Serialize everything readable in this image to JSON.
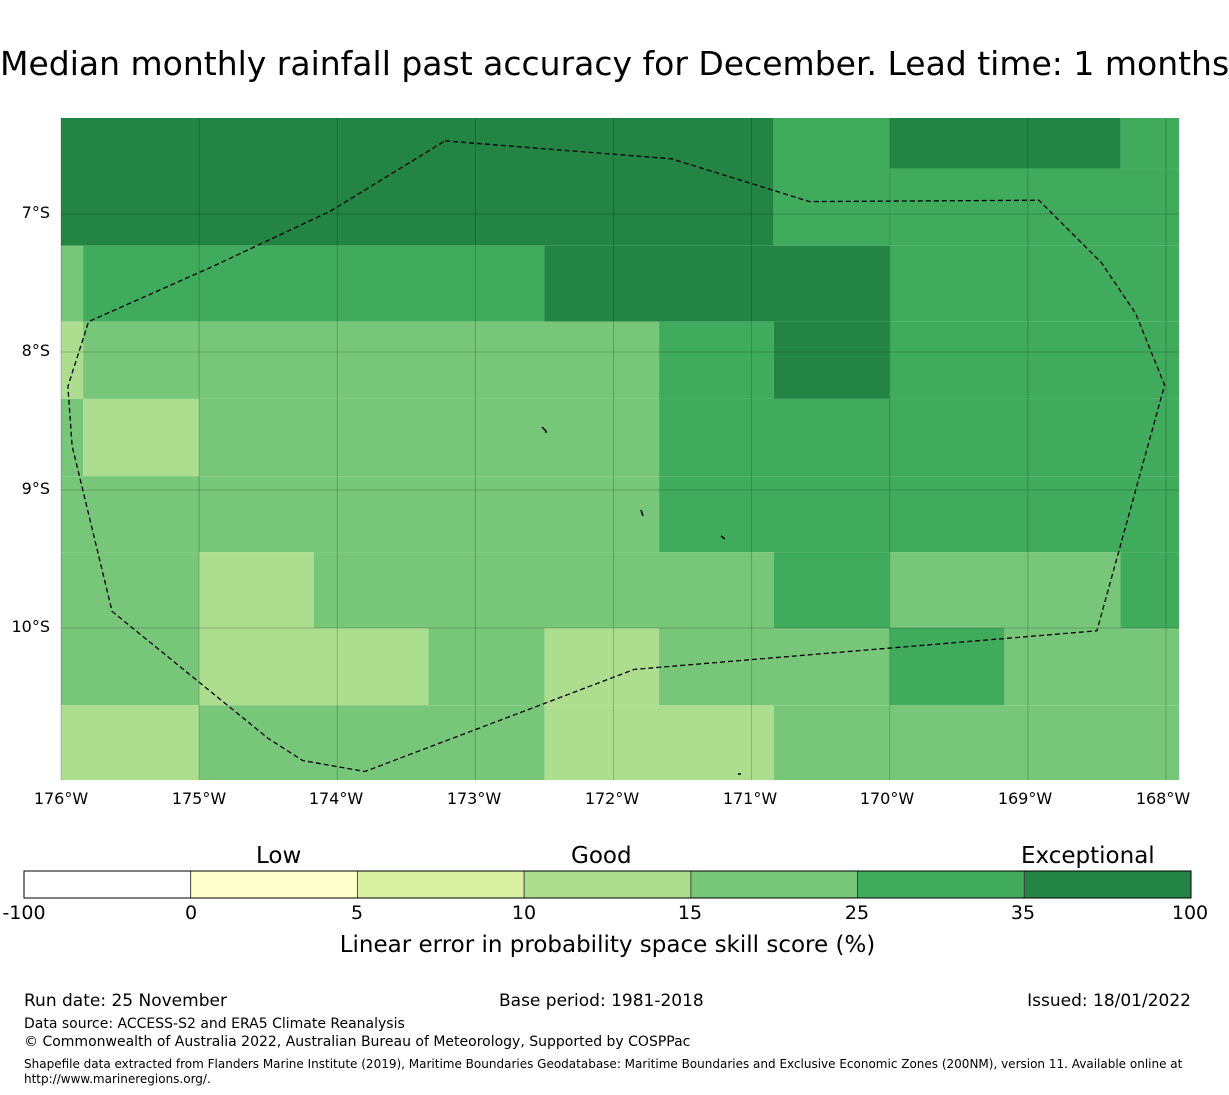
{
  "title": "Median monthly rainfall past accuracy for December. Lead time: 1 months",
  "map": {
    "lat_labels": [
      "7°S",
      "8°S",
      "9°S",
      "10°S"
    ],
    "lon_labels": [
      "176°W",
      "175°W",
      "174°W",
      "173°W",
      "172°W",
      "171°W",
      "170°W",
      "169°W",
      "168°W"
    ],
    "lon_range": [
      -176,
      -167.9
    ],
    "lat_range": [
      -11.15,
      -6.3
    ],
    "grid_cells": [
      {
        "lon": [
          -176,
          -170.84
        ],
        "lat": [
          -7.23,
          -6.3
        ],
        "category": "35-100"
      },
      {
        "lon": [
          -170.84,
          -170
        ],
        "lat": [
          -7.23,
          -6.3
        ],
        "category": "25-35"
      },
      {
        "lon": [
          -170,
          -168.33
        ],
        "lat": [
          -6.67,
          -6.3
        ],
        "category": "35-100"
      },
      {
        "lon": [
          -168.33,
          -167.9
        ],
        "lat": [
          -6.67,
          -6.3
        ],
        "category": "25-35"
      },
      {
        "lon": [
          -170,
          -167.9
        ],
        "lat": [
          -7.23,
          -6.67
        ],
        "category": "25-35"
      },
      {
        "lon": [
          -176,
          -175.84
        ],
        "lat": [
          -7.78,
          -7.23
        ],
        "category": "15-25"
      },
      {
        "lon": [
          -175.84,
          -172.5
        ],
        "lat": [
          -7.78,
          -7.23
        ],
        "category": "25-35"
      },
      {
        "lon": [
          -172.5,
          -170
        ],
        "lat": [
          -7.78,
          -7.23
        ],
        "category": "35-100"
      },
      {
        "lon": [
          -170,
          -167.9
        ],
        "lat": [
          -7.78,
          -7.23
        ],
        "category": "25-35"
      },
      {
        "lon": [
          -176,
          -175.84
        ],
        "lat": [
          -8.34,
          -7.78
        ],
        "category": "10-15"
      },
      {
        "lon": [
          -175.84,
          -171.67
        ],
        "lat": [
          -8.34,
          -7.78
        ],
        "category": "15-25"
      },
      {
        "lon": [
          -171.67,
          -170.84
        ],
        "lat": [
          -8.34,
          -7.78
        ],
        "category": "25-35"
      },
      {
        "lon": [
          -170.84,
          -170
        ],
        "lat": [
          -8.34,
          -7.78
        ],
        "category": "35-100"
      },
      {
        "lon": [
          -170,
          -167.9
        ],
        "lat": [
          -8.34,
          -7.78
        ],
        "category": "25-35"
      },
      {
        "lon": [
          -176,
          -175.84
        ],
        "lat": [
          -8.9,
          -8.34
        ],
        "category": "15-25"
      },
      {
        "lon": [
          -175.84,
          -175
        ],
        "lat": [
          -8.9,
          -8.34
        ],
        "category": "10-15"
      },
      {
        "lon": [
          -175,
          -171.67
        ],
        "lat": [
          -8.9,
          -8.34
        ],
        "category": "15-25"
      },
      {
        "lon": [
          -171.67,
          -167.9
        ],
        "lat": [
          -8.9,
          -8.34
        ],
        "category": "25-35"
      },
      {
        "lon": [
          -176,
          -171.67
        ],
        "lat": [
          -9.45,
          -8.9
        ],
        "category": "15-25"
      },
      {
        "lon": [
          -171.67,
          -167.9
        ],
        "lat": [
          -9.45,
          -8.9
        ],
        "category": "25-35"
      },
      {
        "lon": [
          -176,
          -175
        ],
        "lat": [
          -10.0,
          -9.45
        ],
        "category": "15-25"
      },
      {
        "lon": [
          -175,
          -174.17
        ],
        "lat": [
          -10.0,
          -9.45
        ],
        "category": "10-15"
      },
      {
        "lon": [
          -174.17,
          -170.84
        ],
        "lat": [
          -10.0,
          -9.45
        ],
        "category": "15-25"
      },
      {
        "lon": [
          -170.84,
          -170
        ],
        "lat": [
          -10.0,
          -9.45
        ],
        "category": "25-35"
      },
      {
        "lon": [
          -170,
          -168.33
        ],
        "lat": [
          -10.0,
          -9.45
        ],
        "category": "15-25"
      },
      {
        "lon": [
          -168.33,
          -167.9
        ],
        "lat": [
          -10.0,
          -9.45
        ],
        "category": "25-35"
      },
      {
        "lon": [
          -176,
          -175
        ],
        "lat": [
          -10.56,
          -10.0
        ],
        "category": "15-25"
      },
      {
        "lon": [
          -175,
          -173.34
        ],
        "lat": [
          -10.56,
          -10.0
        ],
        "category": "10-15"
      },
      {
        "lon": [
          -173.34,
          -172.5
        ],
        "lat": [
          -10.56,
          -10.0
        ],
        "category": "15-25"
      },
      {
        "lon": [
          -172.5,
          -171.67
        ],
        "lat": [
          -10.56,
          -10.0
        ],
        "category": "10-15"
      },
      {
        "lon": [
          -171.67,
          -170
        ],
        "lat": [
          -10.56,
          -10.0
        ],
        "category": "15-25"
      },
      {
        "lon": [
          -170,
          -169.17
        ],
        "lat": [
          -10.56,
          -10.0
        ],
        "category": "25-35"
      },
      {
        "lon": [
          -169.17,
          -167.9
        ],
        "lat": [
          -10.56,
          -10.0
        ],
        "category": "15-25"
      },
      {
        "lon": [
          -176,
          -175
        ],
        "lat": [
          -11.15,
          -10.56
        ],
        "category": "10-15"
      },
      {
        "lon": [
          -175,
          -172.5
        ],
        "lat": [
          -11.15,
          -10.56
        ],
        "category": "15-25"
      },
      {
        "lon": [
          -172.5,
          -170.84
        ],
        "lat": [
          -11.15,
          -10.56
        ],
        "category": "10-15"
      },
      {
        "lon": [
          -170.84,
          -167.9
        ],
        "lat": [
          -11.15,
          -10.56
        ],
        "category": "15-25"
      }
    ],
    "eez_boundary": [
      [
        -173.22,
        -6.47
      ],
      [
        -171.58,
        -6.6
      ],
      [
        -170.58,
        -6.91
      ],
      [
        -168.92,
        -6.9
      ],
      [
        -168.47,
        -7.35
      ],
      [
        -168.22,
        -7.72
      ],
      [
        -168.01,
        -8.24
      ],
      [
        -168.5,
        -10.02
      ],
      [
        -171.85,
        -10.3
      ],
      [
        -173.8,
        -11.04
      ],
      [
        -174.25,
        -10.96
      ],
      [
        -174.5,
        -10.8
      ],
      [
        -175.63,
        -9.88
      ],
      [
        -175.92,
        -8.68
      ],
      [
        -175.95,
        -8.25
      ],
      [
        -175.8,
        -7.78
      ],
      [
        -174.9,
        -7.38
      ],
      [
        -174.05,
        -6.98
      ],
      [
        -173.22,
        -6.47
      ]
    ]
  },
  "colorbar": {
    "category_labels": [
      "Low",
      "Good",
      "Exceptional"
    ],
    "tick_labels": [
      "-100",
      "0",
      "5",
      "10",
      "15",
      "25",
      "35",
      "100"
    ],
    "bins": [
      {
        "range": "-100-0",
        "color": "#ffffff"
      },
      {
        "range": "0-5",
        "color": "#ffffcc"
      },
      {
        "range": "5-10",
        "color": "#d9f0a3"
      },
      {
        "range": "10-15",
        "color": "#addd8e"
      },
      {
        "range": "15-25",
        "color": "#78c679"
      },
      {
        "range": "25-35",
        "color": "#41ab5d"
      },
      {
        "range": "35-100",
        "color": "#238443"
      }
    ],
    "xlabel": "Linear error in probability space skill score (%)"
  },
  "footer": {
    "run_date": "Run date: 25 November",
    "base_period": "Base period: 1981-2018",
    "issued": "Issued: 18/01/2022",
    "data_source": "Data source: ACCESS-S2 and ERA5 Climate Reanalysis",
    "copyright": "© Commonwealth of Australia 2022, Australian Bureau of Meteorology, Supported by COSPPac",
    "shapefile_note": "Shapefile data extracted from Flanders Marine Institute (2019), Maritime Boundaries Geodatabase: Maritime Boundaries and Exclusive Economic Zones (200NM), version 11. Available online at http://www.marineregions.org/."
  }
}
